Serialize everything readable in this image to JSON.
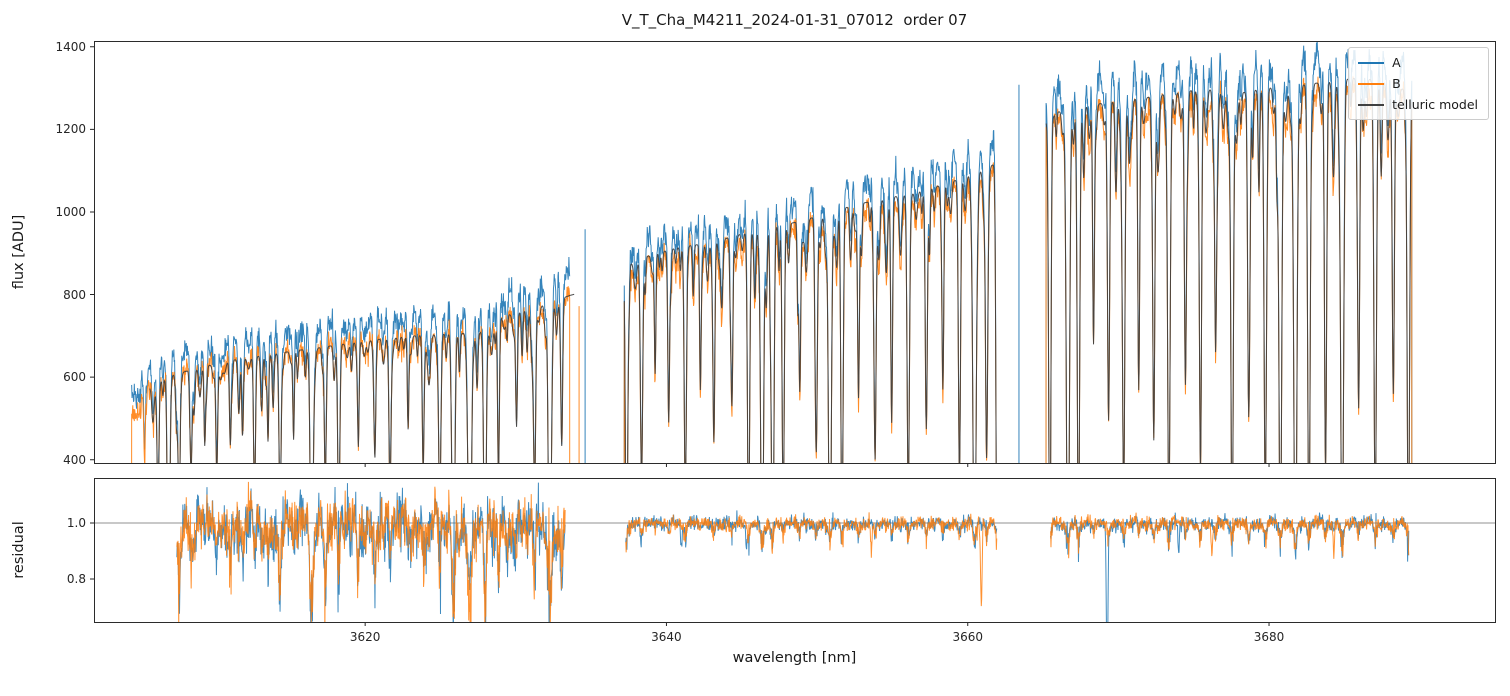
{
  "figure": {
    "title": "V_T_Cha_M4211_2024-01-31_07012  order 07",
    "xlabel": "wavelength [nm]",
    "ylabel_flux": "flux [ADU]",
    "ylabel_residual": "residual"
  },
  "chart_data": {
    "type": "line",
    "title": "V_T_Cha_M4211_2024-01-31_07012  order 07",
    "xlabel": "wavelength [nm]",
    "ylabels": [
      "flux [ADU]",
      "residual"
    ],
    "xlim": [
      3602,
      3695
    ],
    "xticks": [
      3620,
      3640,
      3660,
      3680
    ],
    "dx": 0.025,
    "seed": 20240131,
    "colors": {
      "A": "#1f77b4",
      "B": "#ff7f0e",
      "model": "#404040",
      "hline": "#909090",
      "ticks": "#262626"
    },
    "noise": {
      "sigma": 14,
      "shared": 7
    },
    "top_panel": {
      "ylim": [
        392,
        1414
      ],
      "yticks": [
        400,
        600,
        800,
        1000,
        1200,
        1400
      ]
    },
    "bottom_panel": {
      "ylim": [
        0.646,
        1.161
      ],
      "yticks": [
        0.8,
        1.0
      ],
      "hline": 1.0
    },
    "legend": {
      "position": "upper right",
      "entries": [
        {
          "label": "A",
          "color": "#1f77b4"
        },
        {
          "label": "B",
          "color": "#ff7f0e"
        },
        {
          "label": "telluric model",
          "color": "#404040"
        }
      ]
    },
    "segments": [
      {
        "x_range": [
          3604.5,
          3633.6
        ],
        "model_x_range": [
          3605.7,
          3633.9
        ],
        "residual": {
          "x_range": [
            3607.5,
            3633.3
          ],
          "sigma": 0.045,
          "mismatch": 0.33,
          "wander": 0.055
        },
        "ratio_B": 0.93,
        "model_ratio": 1.0,
        "wiggle_amp": 12,
        "edge_drop": {
          "A_start": false,
          "A_end": false,
          "B_start": true,
          "B_end": true
        },
        "continuum_A": [
          [
            3604.5,
            555
          ],
          [
            3605.5,
            612
          ],
          [
            3607,
            648
          ],
          [
            3609,
            670
          ],
          [
            3611,
            688
          ],
          [
            3613,
            700
          ],
          [
            3615,
            712
          ],
          [
            3617,
            722
          ],
          [
            3619,
            734
          ],
          [
            3621,
            744
          ],
          [
            3623,
            752
          ],
          [
            3625,
            757
          ],
          [
            3627,
            760
          ],
          [
            3628.2,
            764
          ],
          [
            3628.7,
            800
          ],
          [
            3630,
            812
          ],
          [
            3631.5,
            828
          ],
          [
            3633.6,
            858
          ],
          [
            3634,
            862
          ]
        ],
        "weak_lines": {
          "spacing": 0.4,
          "depth_min": 0.04,
          "depth_max": 0.25,
          "width_min": 0.04,
          "width_max": 0.1
        },
        "telluric_lines": [
          [
            3605.35,
            0.3,
            0.05
          ],
          [
            3606.25,
            0.5,
            0.06
          ],
          [
            3606.95,
            0.93,
            0.08
          ],
          [
            3607.65,
            0.6,
            0.06
          ],
          [
            3608.45,
            0.38,
            0.06
          ],
          [
            3609.35,
            0.3,
            0.05
          ],
          [
            3610.15,
            0.42,
            0.06
          ],
          [
            3611.05,
            0.32,
            0.06
          ],
          [
            3611.85,
            0.26,
            0.05
          ],
          [
            3612.65,
            0.48,
            0.06
          ],
          [
            3613.55,
            0.32,
            0.05
          ],
          [
            3614.35,
            0.55,
            0.07
          ],
          [
            3615.25,
            0.32,
            0.05
          ],
          [
            3616.45,
            0.95,
            0.09
          ],
          [
            3617.35,
            0.48,
            0.06
          ],
          [
            3618.25,
            0.62,
            0.07
          ],
          [
            3619.55,
            0.32,
            0.05
          ],
          [
            3620.65,
            0.36,
            0.06
          ],
          [
            3621.65,
            0.52,
            0.07
          ],
          [
            3622.85,
            0.32,
            0.05
          ],
          [
            3623.85,
            0.46,
            0.06
          ],
          [
            3624.95,
            0.62,
            0.07
          ],
          [
            3625.85,
            0.94,
            0.09
          ],
          [
            3626.95,
            0.97,
            0.1
          ],
          [
            3627.95,
            0.9,
            0.08
          ],
          [
            3628.85,
            0.52,
            0.06
          ],
          [
            3630.05,
            0.36,
            0.06
          ],
          [
            3631.25,
            0.56,
            0.07
          ],
          [
            3632.25,
            0.96,
            0.09
          ],
          [
            3633.05,
            0.42,
            0.06
          ]
        ]
      },
      {
        "x_range": [
          3637.2,
          3662.0
        ],
        "residual": {
          "x_range": [
            3637.3,
            3661.95
          ],
          "sigma": 0.012,
          "mismatch": 0.07,
          "wander": 0.008
        },
        "ratio_B": 0.94,
        "model_ratio": 1.02,
        "wiggle_amp": 14,
        "edge_drop": {
          "A_start": true,
          "A_end": true,
          "B_start": true,
          "B_end": true
        },
        "continuum_A": [
          [
            3637.2,
            905
          ],
          [
            3639,
            935
          ],
          [
            3641,
            955
          ],
          [
            3643,
            965
          ],
          [
            3645,
            988
          ],
          [
            3647,
            1005
          ],
          [
            3649,
            1020
          ],
          [
            3651,
            1045
          ],
          [
            3653,
            1065
          ],
          [
            3655,
            1080
          ],
          [
            3657,
            1096
          ],
          [
            3659,
            1120
          ],
          [
            3661,
            1150
          ],
          [
            3662,
            1168
          ]
        ],
        "weak_lines": {
          "spacing": 0.4,
          "depth_min": 0.04,
          "depth_max": 0.22,
          "width_min": 0.04,
          "width_max": 0.09
        },
        "telluric_lines": [
          [
            3637.35,
            0.95,
            0.07
          ],
          [
            3638.35,
            0.55,
            0.07
          ],
          [
            3639.25,
            0.32,
            0.05
          ],
          [
            3640.15,
            0.46,
            0.06
          ],
          [
            3641.25,
            0.6,
            0.07
          ],
          [
            3642.25,
            0.36,
            0.05
          ],
          [
            3643.15,
            0.5,
            0.06
          ],
          [
            3644.35,
            0.42,
            0.06
          ],
          [
            3645.45,
            0.75,
            0.07
          ],
          [
            3646.35,
            0.97,
            0.09
          ],
          [
            3647.05,
            0.95,
            0.08
          ],
          [
            3647.75,
            0.7,
            0.07
          ],
          [
            3648.85,
            0.42,
            0.06
          ],
          [
            3649.95,
            0.55,
            0.07
          ],
          [
            3650.85,
            0.96,
            0.09
          ],
          [
            3651.65,
            0.8,
            0.07
          ],
          [
            3652.75,
            0.46,
            0.06
          ],
          [
            3653.85,
            0.6,
            0.07
          ],
          [
            3654.95,
            0.5,
            0.06
          ],
          [
            3656.05,
            0.7,
            0.07
          ],
          [
            3657.25,
            0.55,
            0.07
          ],
          [
            3658.35,
            0.46,
            0.06
          ],
          [
            3659.45,
            0.65,
            0.07
          ],
          [
            3660.45,
            0.97,
            0.1
          ],
          [
            3661.25,
            0.6,
            0.07
          ],
          [
            3661.95,
            0.95,
            0.07
          ]
        ]
      },
      {
        "x_range": [
          3665.2,
          3689.5
        ],
        "residual": {
          "x_range": [
            3665.5,
            3689.3
          ],
          "sigma": 0.012,
          "mismatch": 0.07,
          "wander": 0.008
        },
        "ratio_B": 0.945,
        "model_ratio": 1.015,
        "wiggle_amp": 16,
        "edge_drop": {
          "A_start": true,
          "A_end": true,
          "B_start": true,
          "B_end": true
        },
        "continuum_A": [
          [
            3665.2,
            1268
          ],
          [
            3666,
            1295
          ],
          [
            3668,
            1312
          ],
          [
            3670,
            1322
          ],
          [
            3672,
            1332
          ],
          [
            3674,
            1346
          ],
          [
            3676,
            1352
          ],
          [
            3678,
            1342
          ],
          [
            3680,
            1356
          ],
          [
            3682,
            1362
          ],
          [
            3684,
            1372
          ],
          [
            3686,
            1382
          ],
          [
            3688,
            1368
          ],
          [
            3689.5,
            1342
          ]
        ],
        "weak_lines": {
          "spacing": 0.4,
          "depth_min": 0.04,
          "depth_max": 0.22,
          "width_min": 0.04,
          "width_max": 0.09
        },
        "telluric_lines": [
          [
            3665.45,
            0.93,
            0.07
          ],
          [
            3666.65,
            0.97,
            0.1
          ],
          [
            3667.35,
            0.85,
            0.08
          ],
          [
            3668.35,
            0.46,
            0.06
          ],
          [
            3669.35,
            0.6,
            0.07
          ],
          [
            3670.35,
            0.75,
            0.08
          ],
          [
            3671.35,
            0.5,
            0.06
          ],
          [
            3672.35,
            0.65,
            0.07
          ],
          [
            3673.35,
            0.8,
            0.08
          ],
          [
            3674.45,
            0.55,
            0.07
          ],
          [
            3675.45,
            0.7,
            0.07
          ],
          [
            3676.45,
            0.46,
            0.06
          ],
          [
            3677.55,
            0.85,
            0.08
          ],
          [
            3678.65,
            0.6,
            0.07
          ],
          [
            3679.75,
            0.75,
            0.08
          ],
          [
            3680.75,
            0.9,
            0.09
          ],
          [
            3681.75,
            0.97,
            0.1
          ],
          [
            3682.65,
            0.85,
            0.08
          ],
          [
            3683.75,
            0.7,
            0.07
          ],
          [
            3684.85,
            0.92,
            0.09
          ],
          [
            3685.95,
            0.6,
            0.07
          ],
          [
            3687.05,
            0.8,
            0.08
          ],
          [
            3688.25,
            0.55,
            0.07
          ],
          [
            3689.25,
            0.88,
            0.08
          ]
        ]
      }
    ],
    "edge_spikes": [
      {
        "series": "A",
        "x": 3634.6,
        "y_top": 958
      },
      {
        "series": "B",
        "x": 3634.2,
        "y_top": 772
      },
      {
        "series": "A",
        "x": 3663.4,
        "y_top": 1308
      }
    ],
    "residual_dips": [
      {
        "series": "A",
        "x": 3669.25,
        "depth": 0.55,
        "width": 0.05
      },
      {
        "series": "B",
        "x": 3660.9,
        "depth": 0.3,
        "width": 0.05
      },
      {
        "series": "A",
        "x": 3645.3,
        "depth": 0.1,
        "width": 0.04
      },
      {
        "series": "B",
        "x": 3653.6,
        "depth": 0.1,
        "width": 0.04
      },
      {
        "series": "A",
        "x": 3641.0,
        "depth": 0.09,
        "width": 0.04
      },
      {
        "series": "B",
        "x": 3676.2,
        "depth": 0.12,
        "width": 0.04
      },
      {
        "series": "A",
        "x": 3674.0,
        "depth": 0.12,
        "width": 0.04
      },
      {
        "series": "B",
        "x": 3684.3,
        "depth": 0.1,
        "width": 0.04
      }
    ]
  }
}
